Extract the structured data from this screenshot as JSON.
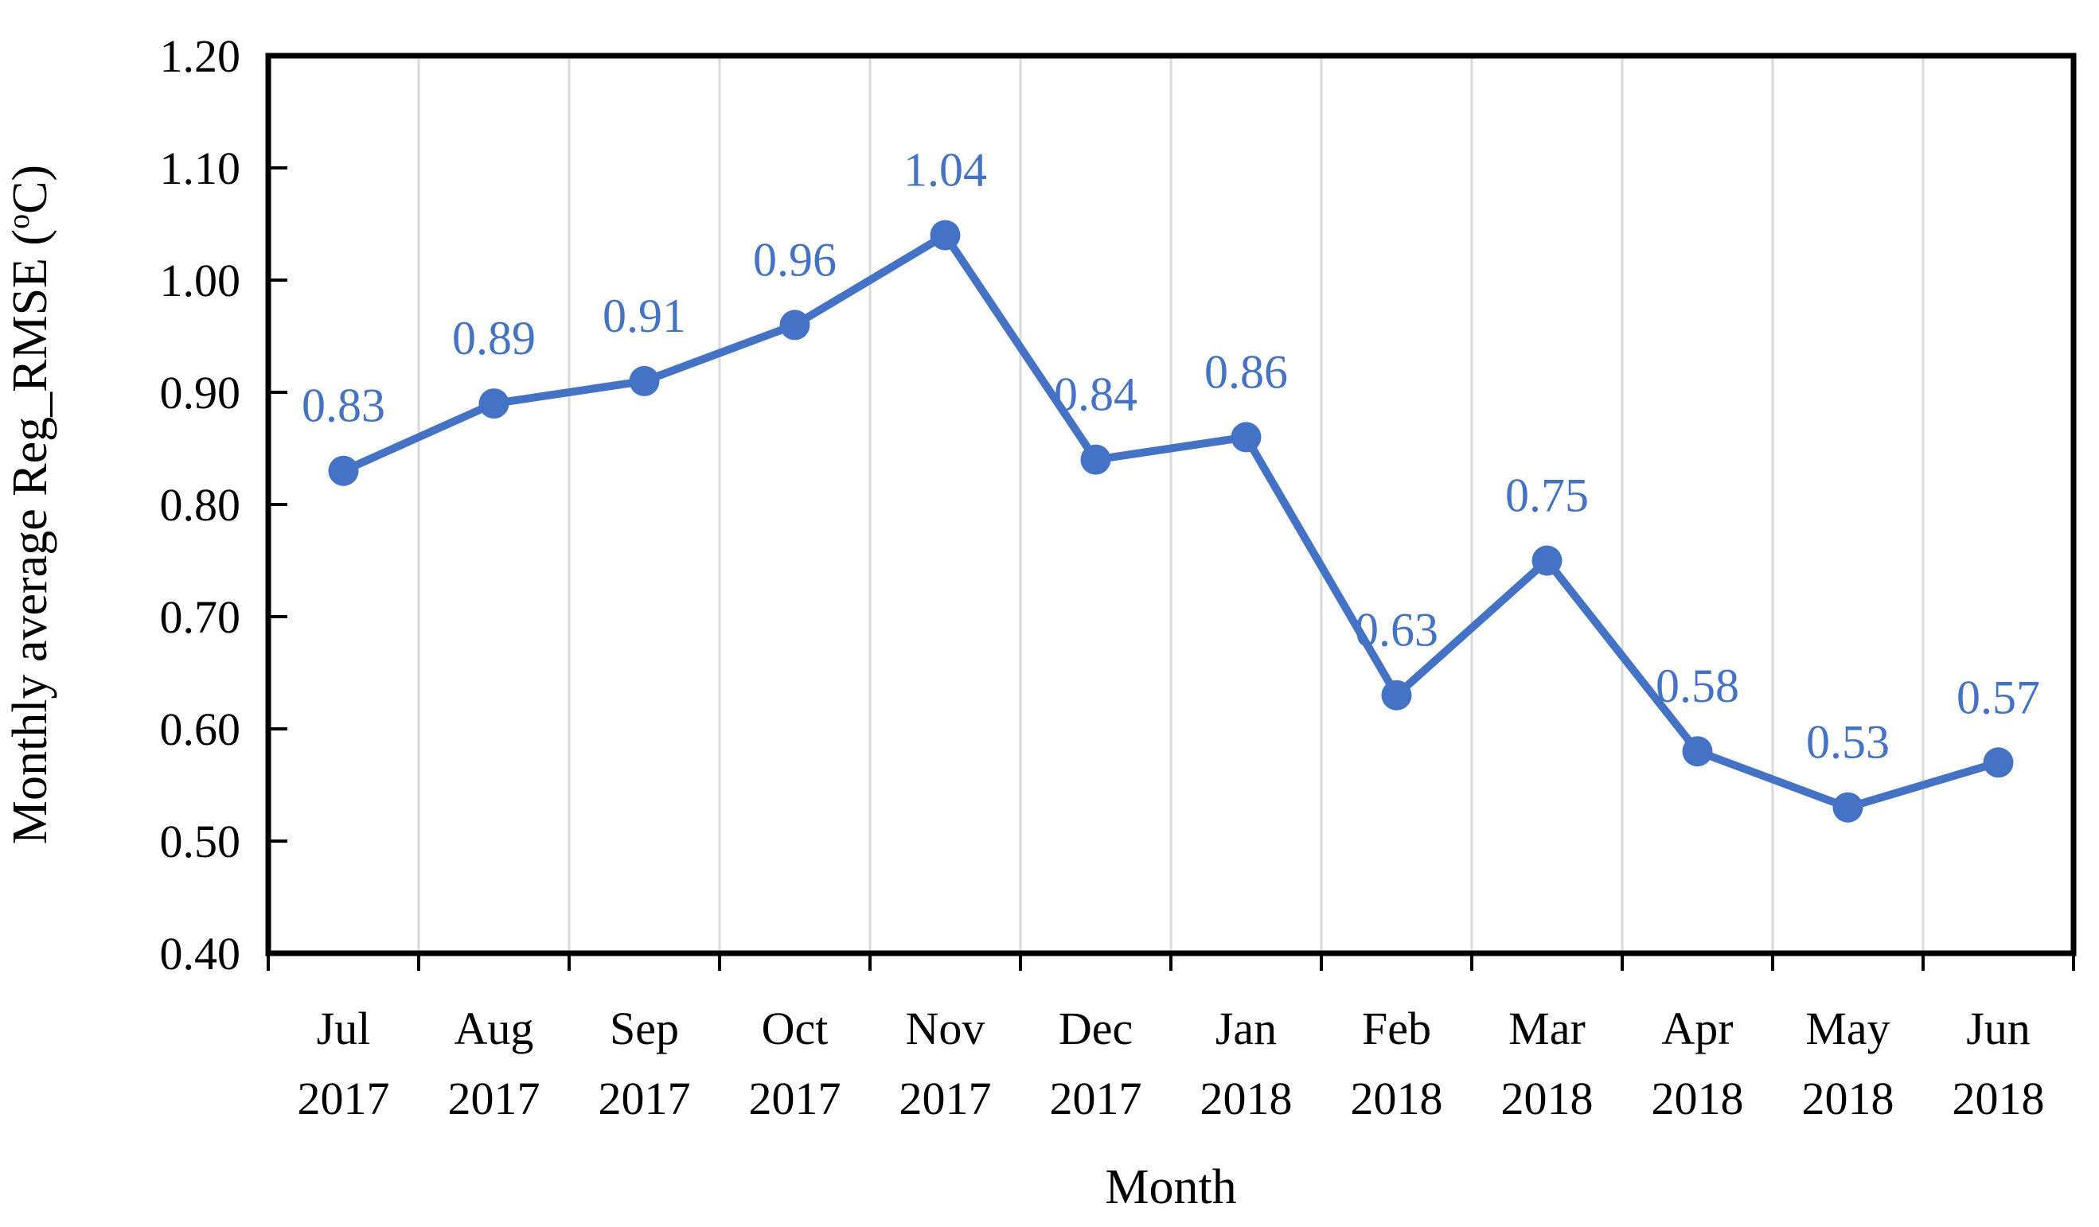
{
  "chart_data": {
    "type": "line",
    "title": "",
    "xlabel": "Month",
    "ylabel": "Monthly average Reg_RMSE (°C)",
    "ylabel_parts": {
      "prefix": "Monthly average Reg_RMSE (",
      "sup": "o",
      "suffix": "C)"
    },
    "categories": [
      {
        "month": "Jul",
        "year": "2017"
      },
      {
        "month": "Aug",
        "year": "2017"
      },
      {
        "month": "Sep",
        "year": "2017"
      },
      {
        "month": "Oct",
        "year": "2017"
      },
      {
        "month": "Nov",
        "year": "2017"
      },
      {
        "month": "Dec",
        "year": "2017"
      },
      {
        "month": "Jan",
        "year": "2018"
      },
      {
        "month": "Feb",
        "year": "2018"
      },
      {
        "month": "Mar",
        "year": "2018"
      },
      {
        "month": "Apr",
        "year": "2018"
      },
      {
        "month": "May",
        "year": "2018"
      },
      {
        "month": "Jun",
        "year": "2018"
      }
    ],
    "series": [
      {
        "name": "Monthly average Reg_RMSE",
        "values": [
          0.83,
          0.89,
          0.91,
          0.96,
          1.04,
          0.84,
          0.86,
          0.63,
          0.75,
          0.58,
          0.53,
          0.57
        ],
        "point_labels": [
          "0.83",
          "0.89",
          "0.91",
          "0.96",
          "1.04",
          "0.84",
          "0.86",
          "0.63",
          "0.75",
          "0.58",
          "0.53",
          "0.57"
        ]
      }
    ],
    "y_axis": {
      "min": 0.4,
      "max": 1.2,
      "step": 0.1,
      "tick_labels": [
        "0.40",
        "0.50",
        "0.60",
        "0.70",
        "0.80",
        "0.90",
        "1.00",
        "1.10",
        "1.20"
      ]
    },
    "grid": "vertical-only",
    "legend": false,
    "colors": {
      "series": "#4472C4",
      "data_label": "#4472C4",
      "gridline": "#D9D9D9",
      "axis": "#000000",
      "text": "#000000",
      "background": "#FFFFFF"
    }
  }
}
